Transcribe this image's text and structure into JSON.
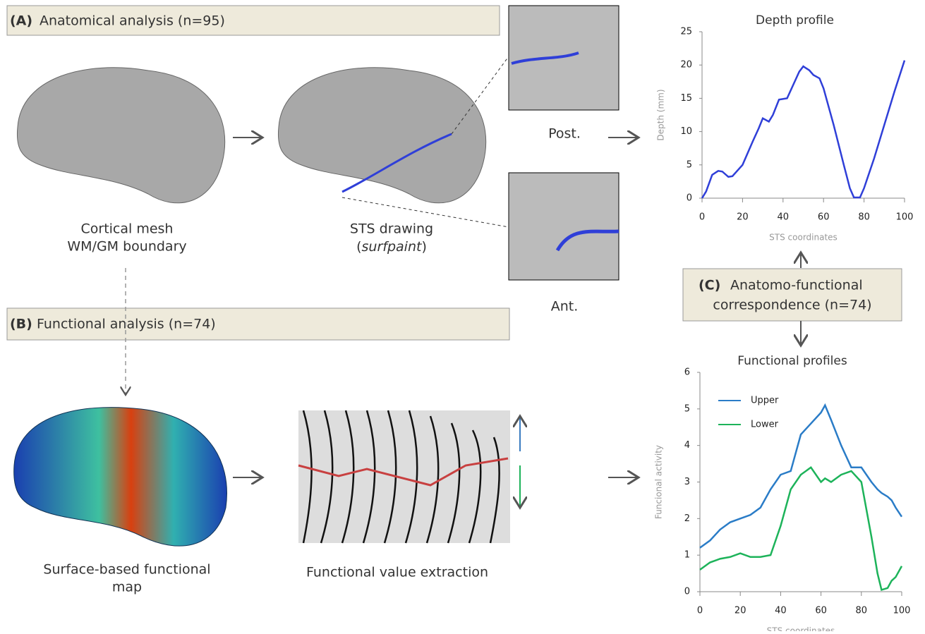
{
  "panels": {
    "a": {
      "label": "(A)",
      "title": "Anatomical analysis (n=95)"
    },
    "b": {
      "label": "(B)",
      "title": "Functional analysis (n=74)"
    },
    "c": {
      "label": "(C)",
      "title_1": "Anatomo-functional",
      "title_2": "correspondence (n=74)"
    }
  },
  "captions": {
    "mesh_1": "Cortical mesh",
    "mesh_2": "WM/GM boundary",
    "sts_1": "STS drawing (",
    "sts_2": "surfpaint",
    "sts_3": ")",
    "post": "Post.",
    "ant": "Ant.",
    "map_1": "Surface-based functional",
    "map_2": "map",
    "extraction": "Functional value extraction"
  },
  "chart_data": [
    {
      "type": "line",
      "title": "Depth profile",
      "x_label": "STS coordinates",
      "y_label": "Depth (mm)",
      "x": [
        0,
        2,
        5,
        8,
        10,
        13,
        15,
        20,
        25,
        28,
        30,
        33,
        35,
        38,
        42,
        45,
        48,
        50,
        53,
        55,
        58,
        60,
        65,
        70,
        73,
        75,
        78,
        80,
        85,
        90,
        95,
        100
      ],
      "series": [
        {
          "color": "#2f3fd8",
          "values": [
            0,
            1,
            3.5,
            4.1,
            4,
            3.2,
            3.3,
            5,
            8.5,
            10.5,
            12,
            11.5,
            12.5,
            14.8,
            15,
            17,
            19,
            19.8,
            19.2,
            18.5,
            18,
            16.5,
            11,
            5,
            1.5,
            0.1,
            0.1,
            1.5,
            6,
            11,
            16,
            20.7
          ]
        }
      ],
      "xlim": [
        0,
        100
      ],
      "xticks": [
        0,
        20,
        40,
        60,
        80,
        100
      ],
      "ylim": [
        0,
        25
      ],
      "yticks": [
        0,
        5,
        10,
        15,
        20,
        25
      ]
    },
    {
      "type": "line",
      "title": "Functional profiles",
      "x_label": "STS coordinates",
      "y_label": "Funcional activity",
      "x": [
        0,
        5,
        10,
        15,
        20,
        25,
        30,
        35,
        40,
        45,
        50,
        55,
        60,
        62,
        65,
        70,
        75,
        80,
        85,
        88,
        90,
        93,
        95,
        97,
        100
      ],
      "series": [
        {
          "name": "Upper",
          "color": "#2a7cc7",
          "values": [
            1.2,
            1.4,
            1.7,
            1.9,
            2,
            2.1,
            2.3,
            2.8,
            3.2,
            3.3,
            4.3,
            4.6,
            4.9,
            5.1,
            4.7,
            4,
            3.4,
            3.4,
            3,
            2.8,
            2.7,
            2.6,
            2.5,
            2.3,
            2.05
          ]
        },
        {
          "name": "Lower",
          "color": "#1db35a",
          "values": [
            0.6,
            0.8,
            0.9,
            0.95,
            1.05,
            0.95,
            0.95,
            1,
            1.8,
            2.8,
            3.2,
            3.4,
            3,
            3.1,
            3,
            3.2,
            3.3,
            3,
            1.5,
            0.5,
            0.05,
            0.1,
            0.3,
            0.4,
            0.7
          ]
        }
      ],
      "xlim": [
        0,
        100
      ],
      "xticks": [
        0,
        20,
        40,
        60,
        80,
        100
      ],
      "ylim": [
        0,
        6
      ],
      "yticks": [
        0,
        1,
        2,
        3,
        4,
        5,
        6
      ]
    }
  ]
}
